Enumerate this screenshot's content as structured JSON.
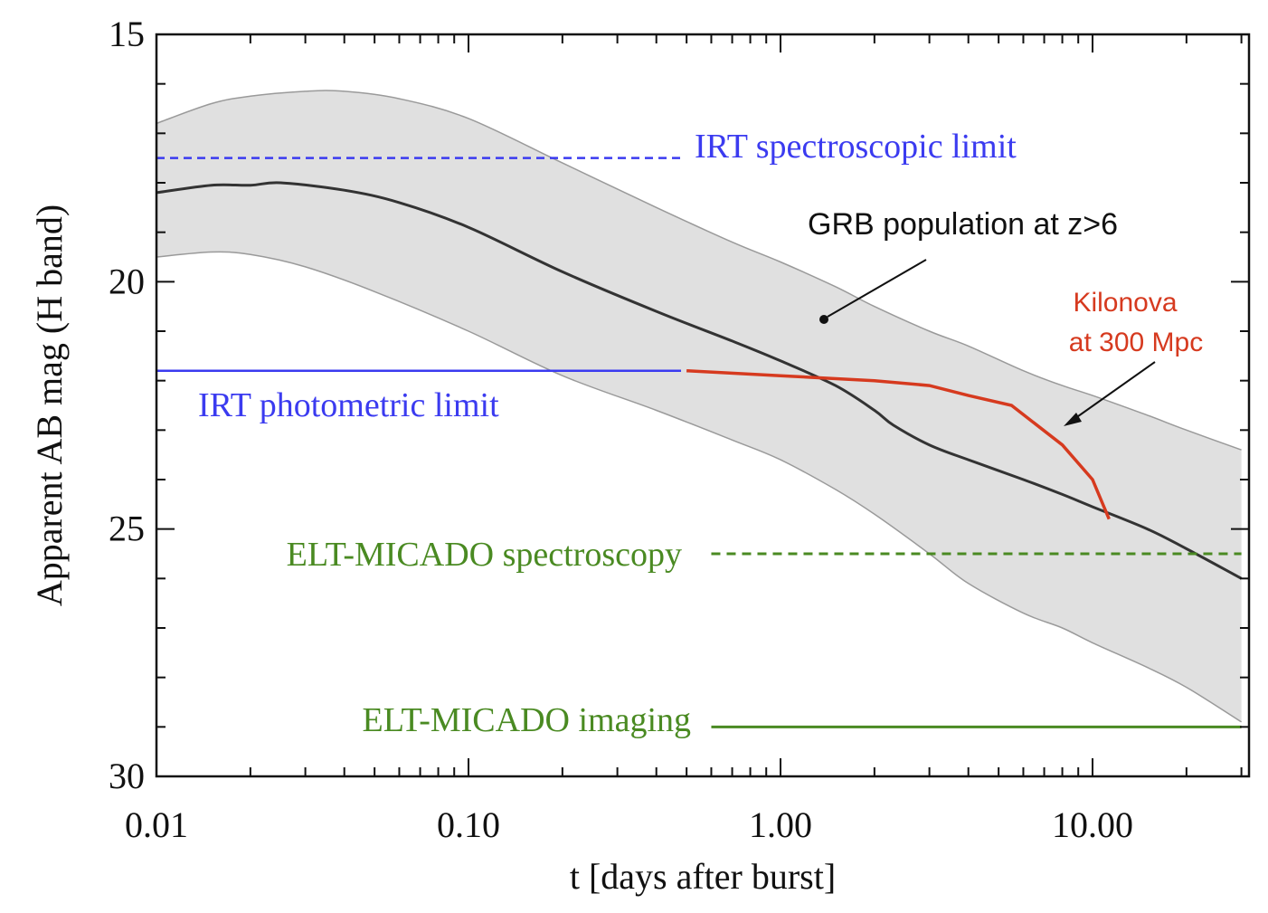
{
  "chart_data": {
    "type": "line",
    "title": "",
    "xlabel": "t [days after burst]",
    "ylabel": "Apparent AB mag (H band)",
    "xscale": "log",
    "xlim": [
      0.01,
      30
    ],
    "ylim": [
      30,
      15
    ],
    "x_ticks": [
      {
        "value": 0.01,
        "label": "0.01"
      },
      {
        "value": 0.1,
        "label": "0.10"
      },
      {
        "value": 1,
        "label": "1.00"
      },
      {
        "value": 10,
        "label": "10.00"
      }
    ],
    "y_ticks": [
      {
        "value": 15,
        "label": "15"
      },
      {
        "value": 20,
        "label": "20"
      },
      {
        "value": 25,
        "label": "25"
      },
      {
        "value": 30,
        "label": "30"
      }
    ],
    "series": [
      {
        "name": "GRB population at z>6 (band upper edge)",
        "color": "#9a9a9a",
        "x": [
          0.01,
          0.015,
          0.02,
          0.03,
          0.04,
          0.06,
          0.1,
          0.2,
          0.4,
          0.7,
          1.0,
          1.5,
          2.0,
          3.0,
          4.0,
          6.0,
          8.0,
          10.0,
          15.0,
          20.0,
          30.0
        ],
        "y": [
          16.8,
          16.4,
          16.25,
          16.15,
          16.15,
          16.3,
          16.7,
          17.6,
          18.5,
          19.2,
          19.6,
          20.1,
          20.5,
          21.0,
          21.3,
          21.8,
          22.1,
          22.3,
          22.7,
          23.0,
          23.4
        ]
      },
      {
        "name": "GRB population at z>6 (band lower edge)",
        "color": "#9a9a9a",
        "x": [
          0.01,
          0.015,
          0.02,
          0.03,
          0.05,
          0.1,
          0.2,
          0.4,
          0.7,
          1.0,
          1.5,
          2.0,
          3.0,
          4.0,
          6.0,
          8.0,
          10.0,
          15.0,
          20.0,
          30.0
        ],
        "y": [
          19.5,
          19.4,
          19.45,
          19.7,
          20.2,
          21.0,
          21.9,
          22.6,
          23.2,
          23.6,
          24.2,
          24.7,
          25.5,
          26.1,
          26.7,
          27.0,
          27.3,
          27.8,
          28.2,
          28.9
        ]
      },
      {
        "name": "GRB population at z>6 (median)",
        "color": "#333333",
        "x": [
          0.01,
          0.015,
          0.02,
          0.025,
          0.04,
          0.06,
          0.1,
          0.2,
          0.4,
          0.7,
          1.0,
          1.5,
          2.0,
          2.3,
          3.0,
          4.0,
          6.0,
          8.0,
          10.0,
          15.0,
          20.0,
          30.0
        ],
        "y": [
          18.2,
          18.05,
          18.05,
          18.0,
          18.15,
          18.4,
          18.9,
          19.8,
          20.6,
          21.2,
          21.6,
          22.1,
          22.6,
          22.9,
          23.3,
          23.6,
          24.0,
          24.3,
          24.55,
          25.0,
          25.4,
          26.0
        ]
      },
      {
        "name": "Kilonova at 300 Mpc",
        "color": "#d63a1f",
        "x": [
          0.5,
          1.0,
          2.0,
          3.0,
          4.0,
          5.5,
          8.0,
          10.0,
          11.3
        ],
        "y": [
          21.8,
          21.9,
          22.0,
          22.1,
          22.3,
          22.5,
          23.3,
          24.0,
          24.8
        ]
      }
    ],
    "limits": [
      {
        "name": "IRT spectroscopic limit",
        "mag": 17.5,
        "x_range": [
          0.01,
          0.48
        ],
        "style": "dashed",
        "color": "#3b3bf0"
      },
      {
        "name": "IRT photometric limit",
        "mag": 21.8,
        "x_range": [
          0.01,
          0.48
        ],
        "style": "solid",
        "color": "#3b3bf0"
      },
      {
        "name": "ELT-MICADO spectroscopy",
        "mag": 25.5,
        "x_range": [
          0.6,
          30
        ],
        "style": "dashed",
        "color": "#4a8a22"
      },
      {
        "name": "ELT-MICADO imaging",
        "mag": 29.0,
        "x_range": [
          0.6,
          30
        ],
        "style": "solid",
        "color": "#4a8a22"
      }
    ],
    "annotations": [
      {
        "text": "IRT spectroscopic limit",
        "color": "#3b3bf0"
      },
      {
        "text": "IRT photometric limit",
        "color": "#3b3bf0"
      },
      {
        "text": "ELT-MICADO spectroscopy",
        "color": "#4a8a22"
      },
      {
        "text": "ELT-MICADO imaging",
        "color": "#4a8a22"
      },
      {
        "text": "GRB population at z>6",
        "color": "#111111"
      },
      {
        "text": "Kilonova",
        "color": "#d63a1f"
      },
      {
        "text": "at 300 Mpc",
        "color": "#d63a1f"
      }
    ],
    "band_fill_color": "#e0e0e0"
  }
}
